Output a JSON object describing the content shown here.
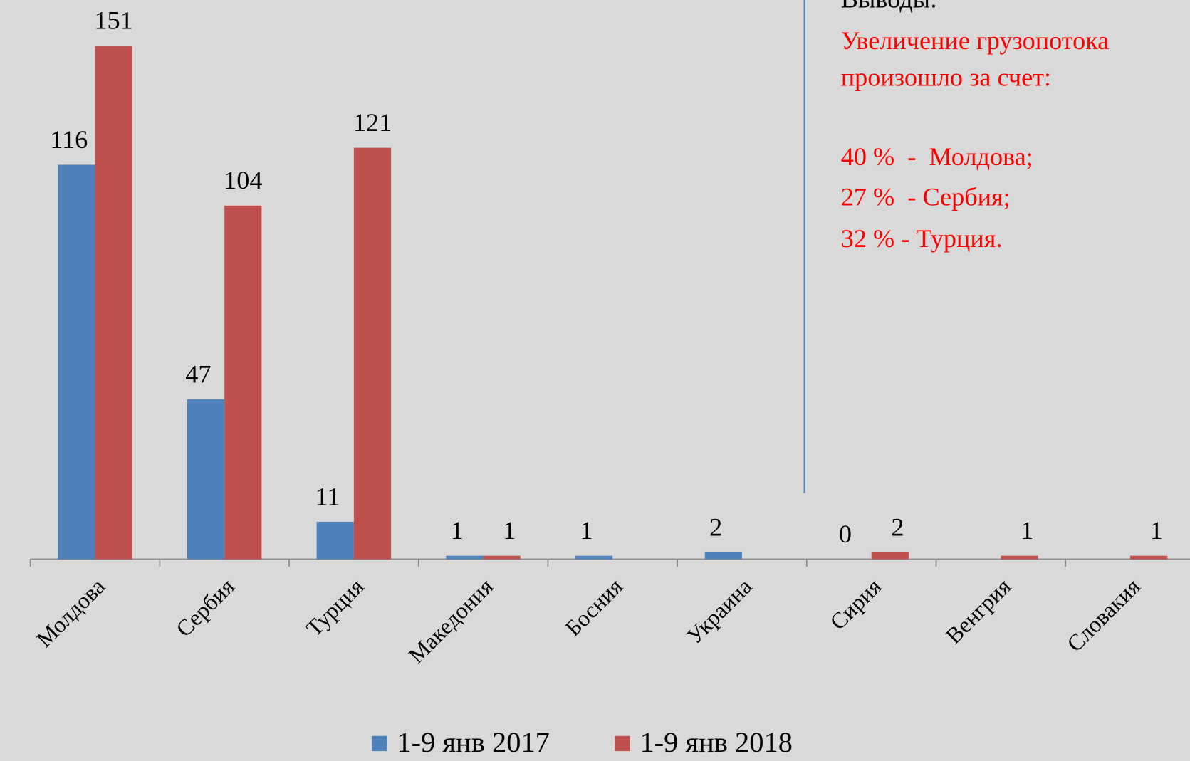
{
  "chart_data": {
    "type": "bar",
    "categories": [
      "Молдова",
      "Сербия",
      "Турция",
      "Македония",
      "Босния",
      "Украина",
      "Сирия",
      "Венгрия",
      "Словакия"
    ],
    "series": [
      {
        "name": "1-9 янв 2017",
        "color": "#4f81bd",
        "values": [
          116,
          47,
          11,
          1,
          1,
          2,
          0,
          null,
          null
        ]
      },
      {
        "name": "1-9 янв 2018",
        "color": "#c0504d",
        "values": [
          151,
          104,
          121,
          1,
          null,
          null,
          2,
          1,
          1
        ]
      }
    ],
    "ylim": [
      0,
      160
    ],
    "annotation_title": "Выводы:",
    "annotations": [
      "Увеличение грузопотока",
      "произошло за счет:",
      "40 %  -  Молдова;",
      "27 %  - Сербия;",
      "32 % - Турция."
    ]
  }
}
